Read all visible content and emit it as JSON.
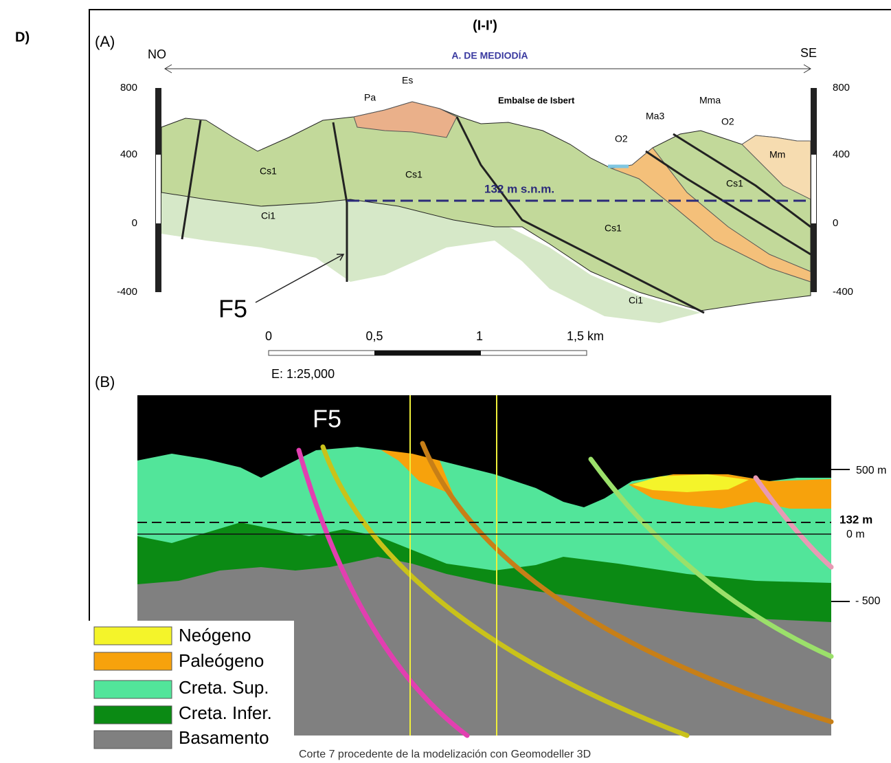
{
  "panel_label": "D)",
  "section_a": {
    "label": "(A)",
    "title": "(I-I')",
    "left_end": "NO",
    "right_end": "SE",
    "area": "A. DE MEDIODÍA",
    "left_axis": [
      "800",
      "400",
      "0",
      "-400"
    ],
    "right_axis": [
      "800",
      "400",
      "0",
      "-400"
    ],
    "units": [
      "Pa",
      "Es",
      "Embalse de Isbert",
      "Ma3",
      "Mma",
      "O2",
      "O2",
      "Mm",
      "Cs1",
      "Cs1",
      "Cs1",
      "Cs1",
      "Ci1",
      "Ci1"
    ],
    "reference_line": "132 m s.n.m.",
    "fault": "F5",
    "scale": {
      "ticks": [
        "0",
        "0,5",
        "1",
        "1,5 km"
      ],
      "ratio": "E: 1:25,000"
    }
  },
  "section_b": {
    "label": "(B)",
    "fault": "F5",
    "depth_labels": [
      "500 m",
      "132 m",
      "0 m",
      "- 500"
    ],
    "legend": [
      "Neógeno",
      "Paleógeno",
      "Creta. Sup.",
      "Creta. Infer.",
      "Basamento"
    ],
    "caption": "Corte 7 procedente de la modelización con Geomodeller 3D"
  }
}
